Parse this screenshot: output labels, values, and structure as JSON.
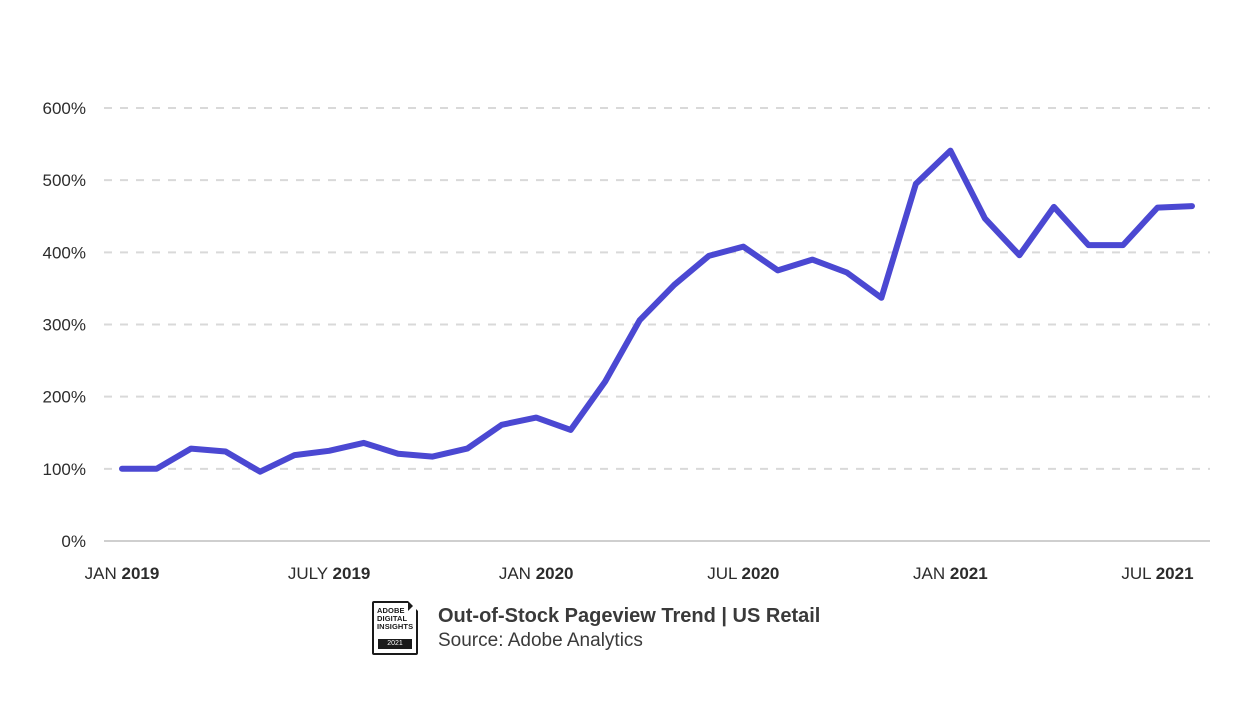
{
  "chart_data": {
    "type": "line",
    "title": "Out-of-Stock Pageview Trend | US Retail",
    "subtitle": "Source: Adobe Analytics",
    "xlabel": "",
    "ylabel": "",
    "ylim": [
      0,
      600
    ],
    "yticks": [
      0,
      100,
      200,
      300,
      400,
      500,
      600
    ],
    "ytick_labels": [
      "0%",
      "100%",
      "200%",
      "300%",
      "400%",
      "500%",
      "600%"
    ],
    "xticks": [
      {
        "month": "JAN",
        "year": "2019",
        "index": 0
      },
      {
        "month": "JULY",
        "year": "2019",
        "index": 6
      },
      {
        "month": "JAN",
        "year": "2020",
        "index": 12
      },
      {
        "month": "JUL",
        "year": "2020",
        "index": 18
      },
      {
        "month": "JAN",
        "year": "2021",
        "index": 24
      },
      {
        "month": "JUL",
        "year": "2021",
        "index": 30
      }
    ],
    "grid": true,
    "color": "#4b48d2",
    "series": [
      {
        "x": [
          "2019-01",
          "2019-02",
          "2019-03",
          "2019-04",
          "2019-05",
          "2019-06",
          "2019-07",
          "2019-08",
          "2019-09",
          "2019-10",
          "2019-11",
          "2019-12",
          "2020-01",
          "2020-02",
          "2020-03",
          "2020-04",
          "2020-05",
          "2020-06",
          "2020-07",
          "2020-08",
          "2020-09",
          "2020-10",
          "2020-11",
          "2020-12",
          "2021-01",
          "2021-02",
          "2021-03",
          "2021-04",
          "2021-05",
          "2021-06",
          "2021-07",
          "2021-08"
        ],
        "values": [
          100,
          100,
          128,
          124,
          96,
          119,
          125,
          136,
          121,
          117,
          128,
          161,
          171,
          154,
          221,
          306,
          355,
          395,
          408,
          375,
          390,
          372,
          337,
          495,
          541,
          447,
          396,
          463,
          410,
          410,
          462,
          464
        ]
      }
    ]
  },
  "footer": {
    "badge_lines": "ADOBE\nDIGITAL\nINSIGHTS",
    "badge_year": "2021",
    "title": "Out-of-Stock Pageview Trend | US Retail",
    "source": "Source: Adobe Analytics"
  }
}
